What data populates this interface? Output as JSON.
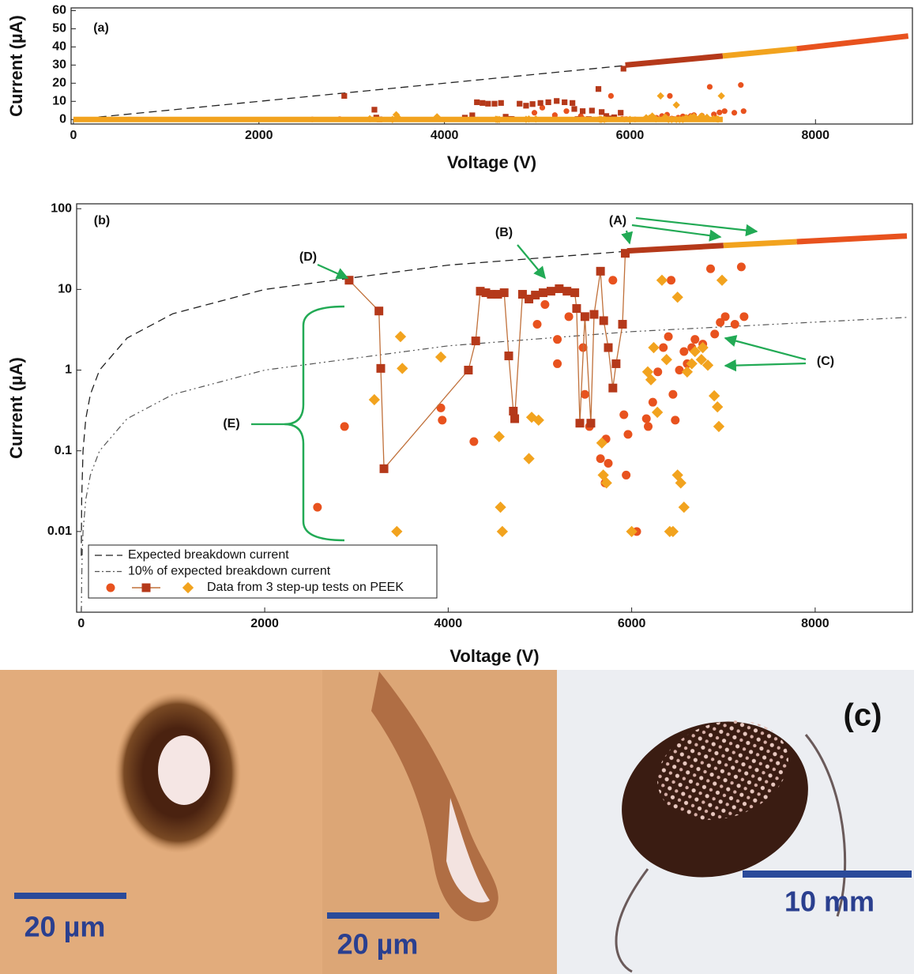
{
  "chart_data": [
    {
      "type": "scatter",
      "panel_label": "(a)",
      "xlabel": "Voltage (V)",
      "ylabel": "Current (µA)",
      "xlim": [
        -25,
        9045
      ],
      "ylim": [
        -2.5,
        61.5
      ],
      "xticks": [
        0,
        2000,
        4000,
        6000,
        8000
      ],
      "yticks": [
        0,
        10,
        20,
        30,
        40,
        50,
        60
      ],
      "log_y": false,
      "series": [
        {
          "color": "#222222",
          "marker": "none",
          "line": "dashed",
          "x": [
            0,
            9000
          ],
          "values": [
            0,
            45
          ]
        },
        {
          "color": "#f2a31e",
          "marker": "none",
          "line": "thick",
          "x": [
            0,
            7000
          ],
          "values": [
            0,
            0
          ]
        },
        {
          "color": "#e8521e",
          "marker": "circle",
          "line": "none",
          "x": [
            2575,
            2870,
            3920,
            3935,
            4280,
            4970,
            5055,
            5190,
            5190,
            5315,
            5470,
            5490,
            5540,
            5660,
            5710,
            5745,
            5720,
            5795,
            5915,
            5960,
            5940,
            6055,
            6160,
            6180,
            6230,
            6285,
            6345,
            6400,
            6430,
            6450,
            6475,
            6520,
            6570,
            6605,
            6655,
            6690,
            6775,
            6860,
            6905,
            6965,
            7020,
            7125,
            7195,
            7225
          ],
          "values": [
            0.02,
            0.2,
            0.34,
            0.24,
            0.13,
            3.7,
            6.5,
            2.4,
            1.2,
            4.6,
            1.9,
            0.5,
            0.2,
            0.08,
            0.04,
            0.07,
            0.14,
            13,
            0.28,
            0.16,
            0.05,
            0.01,
            0.25,
            0.2,
            0.4,
            0.95,
            1.9,
            2.6,
            13,
            0.5,
            0.24,
            1,
            1.7,
            1.2,
            1.9,
            2.4,
            2.1,
            18,
            2.8,
            3.9,
            4.6,
            3.7,
            19,
            4.6
          ]
        },
        {
          "color": "#b5391a",
          "marker": "square",
          "line": "none",
          "x": [
            2920,
            3245,
            3265,
            3300,
            4220,
            4300,
            4350,
            4410,
            4470,
            4540,
            4610,
            4660,
            4710,
            4725,
            4810,
            4880,
            4950,
            5035,
            5120,
            5210,
            5295,
            5380,
            5400,
            5435,
            5490,
            5555,
            5590,
            5660,
            5695,
            5745,
            5795,
            5830,
            5900,
            5930
          ],
          "values": [
            13,
            5.4,
            1.05,
            0.06,
            1,
            2.3,
            9.5,
            9.1,
            8.7,
            8.7,
            9.1,
            1.5,
            0.31,
            0.25,
            8.7,
            7.6,
            8.5,
            9.1,
            9.5,
            10.2,
            9.5,
            9.1,
            5.8,
            0.22,
            4.6,
            0.22,
            4.9,
            16.8,
            4.1,
            1.9,
            0.6,
            1.2,
            3.7,
            28
          ]
        },
        {
          "color": "#f2a31e",
          "marker": "diamond",
          "line": "none",
          "x": [
            3195,
            3440,
            3480,
            3500,
            3920,
            4555,
            4570,
            4590,
            4880,
            4910,
            4985,
            5675,
            5690,
            5725,
            6000,
            6175,
            6210,
            6240,
            6280,
            6330,
            6380,
            6415,
            6450,
            6500,
            6500,
            6535,
            6570,
            6605,
            6655,
            6690,
            6760,
            6775,
            6830,
            6900,
            6935,
            6950,
            6985
          ],
          "values": [
            0.43,
            0.01,
            2.6,
            1.05,
            1.45,
            0.15,
            0.02,
            0.01,
            0.08,
            0.26,
            0.24,
            0.125,
            0.05,
            0.04,
            0.01,
            0.95,
            0.76,
            1.9,
            0.3,
            13,
            1.35,
            0.01,
            0.01,
            8,
            0.05,
            0.04,
            0.02,
            0.95,
            1.2,
            1.7,
            1.35,
            1.9,
            1.15,
            0.48,
            0.35,
            0.2,
            13
          ]
        },
        {
          "color": "#b5391a",
          "marker": "none",
          "line": "thick",
          "x": [
            5950,
            7000
          ],
          "values": [
            30,
            35
          ]
        },
        {
          "color": "#f2a31e",
          "marker": "none",
          "line": "thick",
          "x": [
            7000,
            7800
          ],
          "values": [
            35,
            39
          ]
        },
        {
          "color": "#e8521e",
          "marker": "none",
          "line": "thick",
          "x": [
            7800,
            9000
          ],
          "values": [
            39,
            46
          ]
        }
      ]
    },
    {
      "type": "scatter",
      "panel_label": "(b)",
      "xlabel": "Voltage (V)",
      "ylabel": "Current (µA)",
      "xlim": [
        -50,
        9060
      ],
      "ylim": [
        0.001,
        115
      ],
      "xticks": [
        0,
        2000,
        4000,
        6000,
        8000
      ],
      "yticks": [
        0.01,
        0.1,
        1,
        10,
        100
      ],
      "log_y": true,
      "legend_label": "Data from 3 step-up tests on PEEK",
      "annotations": [
        "(A)",
        "(B)",
        "(C)",
        "(D)",
        "(E)"
      ],
      "series": [
        {
          "name": "Expected breakdown current",
          "color": "#222222",
          "marker": "none",
          "line": "dashed",
          "x": [
            1,
            5,
            20,
            50,
            100,
            200,
            500,
            1000,
            2000,
            4000,
            6000,
            9000
          ],
          "values": [
            0.005,
            0.025,
            0.1,
            0.25,
            0.5,
            1,
            2.5,
            5,
            10,
            20,
            30,
            45
          ]
        },
        {
          "name": "10% of expected breakdown current",
          "color": "#555555",
          "marker": "none",
          "line": "dashdot",
          "x": [
            2,
            5,
            10,
            20,
            50,
            100,
            200,
            500,
            1000,
            2000,
            4000,
            6000,
            9000
          ],
          "values": [
            0.001,
            0.0025,
            0.005,
            0.01,
            0.025,
            0.05,
            0.1,
            0.25,
            0.5,
            1,
            2,
            3,
            4.5
          ]
        },
        {
          "color": "#e8521e",
          "marker": "circle",
          "line": "none",
          "x": [
            2575,
            2870,
            3920,
            3935,
            4280,
            4970,
            5055,
            5190,
            5190,
            5315,
            5470,
            5490,
            5540,
            5660,
            5710,
            5745,
            5720,
            5795,
            5915,
            5960,
            5940,
            6055,
            6160,
            6180,
            6230,
            6285,
            6345,
            6400,
            6430,
            6450,
            6475,
            6520,
            6570,
            6605,
            6655,
            6690,
            6775,
            6860,
            6905,
            6965,
            7020,
            7125,
            7195,
            7225
          ],
          "values": [
            0.02,
            0.2,
            0.34,
            0.24,
            0.13,
            3.7,
            6.5,
            2.4,
            1.2,
            4.6,
            1.9,
            0.5,
            0.2,
            0.08,
            0.04,
            0.07,
            0.14,
            13,
            0.28,
            0.16,
            0.05,
            0.01,
            0.25,
            0.2,
            0.4,
            0.95,
            1.9,
            2.6,
            13,
            0.5,
            0.24,
            1,
            1.7,
            1.2,
            1.9,
            2.4,
            2.1,
            18,
            2.8,
            3.9,
            4.6,
            3.7,
            19,
            4.6
          ]
        },
        {
          "color": "#b5391a",
          "marker": "square",
          "line": "solid",
          "x": [
            2920,
            3245,
            3265,
            3300,
            4220,
            4300,
            4350,
            4410,
            4470,
            4540,
            4610,
            4660,
            4710,
            4725,
            4810,
            4880,
            4950,
            5035,
            5120,
            5210,
            5295,
            5380,
            5400,
            5435,
            5490,
            5555,
            5590,
            5660,
            5695,
            5745,
            5795,
            5830,
            5900,
            5930
          ],
          "values": [
            13,
            5.4,
            1.05,
            0.06,
            1,
            2.3,
            9.5,
            9.1,
            8.7,
            8.7,
            9.1,
            1.5,
            0.31,
            0.25,
            8.7,
            7.6,
            8.5,
            9.1,
            9.5,
            10.2,
            9.5,
            9.1,
            5.8,
            0.22,
            4.6,
            0.22,
            4.9,
            16.8,
            4.1,
            1.9,
            0.6,
            1.2,
            3.7,
            28
          ]
        },
        {
          "color": "#f2a31e",
          "marker": "diamond",
          "line": "none",
          "x": [
            3195,
            3440,
            3480,
            3500,
            3920,
            4555,
            4570,
            4590,
            4880,
            4910,
            4985,
            5675,
            5690,
            5725,
            6000,
            6175,
            6210,
            6240,
            6280,
            6330,
            6380,
            6415,
            6450,
            6500,
            6500,
            6535,
            6570,
            6605,
            6655,
            6690,
            6760,
            6775,
            6830,
            6900,
            6935,
            6950,
            6985
          ],
          "values": [
            0.43,
            0.01,
            2.6,
            1.05,
            1.45,
            0.15,
            0.02,
            0.01,
            0.08,
            0.26,
            0.24,
            0.125,
            0.05,
            0.04,
            0.01,
            0.95,
            0.76,
            1.9,
            0.3,
            13,
            1.35,
            0.01,
            0.01,
            8,
            0.05,
            0.04,
            0.02,
            0.95,
            1.2,
            1.7,
            1.35,
            1.9,
            1.15,
            0.48,
            0.35,
            0.2,
            13
          ]
        },
        {
          "color": "#b5391a",
          "marker": "none",
          "line": "thick",
          "x": [
            5950,
            7000
          ],
          "values": [
            30,
            35
          ]
        },
        {
          "color": "#f2a31e",
          "marker": "none",
          "line": "thick",
          "x": [
            7000,
            7800
          ],
          "values": [
            35,
            39
          ]
        },
        {
          "color": "#e8521e",
          "marker": "none",
          "line": "thick",
          "x": [
            7800,
            9000
          ],
          "values": [
            39,
            46
          ]
        }
      ]
    }
  ],
  "photos": {
    "panels": [
      {
        "scale_label": "20 µm"
      },
      {
        "scale_label": "20 µm"
      },
      {
        "panel_label": "(c)",
        "scale_label": "10 mm"
      }
    ]
  }
}
